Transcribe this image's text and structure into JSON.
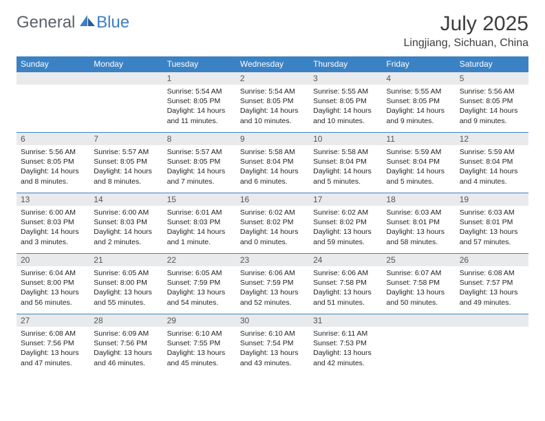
{
  "logo": {
    "text_general": "General",
    "text_blue": "Blue"
  },
  "header": {
    "month_title": "July 2025",
    "location": "Lingjiang, Sichuan, China"
  },
  "colors": {
    "header_bg": "#3b82c4",
    "header_text": "#ffffff",
    "daynum_bg": "#e9eaec",
    "border": "#3b82c4",
    "logo_gray": "#5a6168",
    "logo_blue": "#3b7fc4"
  },
  "day_names": [
    "Sunday",
    "Monday",
    "Tuesday",
    "Wednesday",
    "Thursday",
    "Friday",
    "Saturday"
  ],
  "weeks": [
    [
      null,
      null,
      {
        "n": "1",
        "sr": "5:54 AM",
        "ss": "8:05 PM",
        "dl": "14 hours and 11 minutes."
      },
      {
        "n": "2",
        "sr": "5:54 AM",
        "ss": "8:05 PM",
        "dl": "14 hours and 10 minutes."
      },
      {
        "n": "3",
        "sr": "5:55 AM",
        "ss": "8:05 PM",
        "dl": "14 hours and 10 minutes."
      },
      {
        "n": "4",
        "sr": "5:55 AM",
        "ss": "8:05 PM",
        "dl": "14 hours and 9 minutes."
      },
      {
        "n": "5",
        "sr": "5:56 AM",
        "ss": "8:05 PM",
        "dl": "14 hours and 9 minutes."
      }
    ],
    [
      {
        "n": "6",
        "sr": "5:56 AM",
        "ss": "8:05 PM",
        "dl": "14 hours and 8 minutes."
      },
      {
        "n": "7",
        "sr": "5:57 AM",
        "ss": "8:05 PM",
        "dl": "14 hours and 8 minutes."
      },
      {
        "n": "8",
        "sr": "5:57 AM",
        "ss": "8:05 PM",
        "dl": "14 hours and 7 minutes."
      },
      {
        "n": "9",
        "sr": "5:58 AM",
        "ss": "8:04 PM",
        "dl": "14 hours and 6 minutes."
      },
      {
        "n": "10",
        "sr": "5:58 AM",
        "ss": "8:04 PM",
        "dl": "14 hours and 5 minutes."
      },
      {
        "n": "11",
        "sr": "5:59 AM",
        "ss": "8:04 PM",
        "dl": "14 hours and 5 minutes."
      },
      {
        "n": "12",
        "sr": "5:59 AM",
        "ss": "8:04 PM",
        "dl": "14 hours and 4 minutes."
      }
    ],
    [
      {
        "n": "13",
        "sr": "6:00 AM",
        "ss": "8:03 PM",
        "dl": "14 hours and 3 minutes."
      },
      {
        "n": "14",
        "sr": "6:00 AM",
        "ss": "8:03 PM",
        "dl": "14 hours and 2 minutes."
      },
      {
        "n": "15",
        "sr": "6:01 AM",
        "ss": "8:03 PM",
        "dl": "14 hours and 1 minute."
      },
      {
        "n": "16",
        "sr": "6:02 AM",
        "ss": "8:02 PM",
        "dl": "14 hours and 0 minutes."
      },
      {
        "n": "17",
        "sr": "6:02 AM",
        "ss": "8:02 PM",
        "dl": "13 hours and 59 minutes."
      },
      {
        "n": "18",
        "sr": "6:03 AM",
        "ss": "8:01 PM",
        "dl": "13 hours and 58 minutes."
      },
      {
        "n": "19",
        "sr": "6:03 AM",
        "ss": "8:01 PM",
        "dl": "13 hours and 57 minutes."
      }
    ],
    [
      {
        "n": "20",
        "sr": "6:04 AM",
        "ss": "8:00 PM",
        "dl": "13 hours and 56 minutes."
      },
      {
        "n": "21",
        "sr": "6:05 AM",
        "ss": "8:00 PM",
        "dl": "13 hours and 55 minutes."
      },
      {
        "n": "22",
        "sr": "6:05 AM",
        "ss": "7:59 PM",
        "dl": "13 hours and 54 minutes."
      },
      {
        "n": "23",
        "sr": "6:06 AM",
        "ss": "7:59 PM",
        "dl": "13 hours and 52 minutes."
      },
      {
        "n": "24",
        "sr": "6:06 AM",
        "ss": "7:58 PM",
        "dl": "13 hours and 51 minutes."
      },
      {
        "n": "25",
        "sr": "6:07 AM",
        "ss": "7:58 PM",
        "dl": "13 hours and 50 minutes."
      },
      {
        "n": "26",
        "sr": "6:08 AM",
        "ss": "7:57 PM",
        "dl": "13 hours and 49 minutes."
      }
    ],
    [
      {
        "n": "27",
        "sr": "6:08 AM",
        "ss": "7:56 PM",
        "dl": "13 hours and 47 minutes."
      },
      {
        "n": "28",
        "sr": "6:09 AM",
        "ss": "7:56 PM",
        "dl": "13 hours and 46 minutes."
      },
      {
        "n": "29",
        "sr": "6:10 AM",
        "ss": "7:55 PM",
        "dl": "13 hours and 45 minutes."
      },
      {
        "n": "30",
        "sr": "6:10 AM",
        "ss": "7:54 PM",
        "dl": "13 hours and 43 minutes."
      },
      {
        "n": "31",
        "sr": "6:11 AM",
        "ss": "7:53 PM",
        "dl": "13 hours and 42 minutes."
      },
      null,
      null
    ]
  ],
  "labels": {
    "sunrise": "Sunrise:",
    "sunset": "Sunset:",
    "daylight": "Daylight:"
  }
}
